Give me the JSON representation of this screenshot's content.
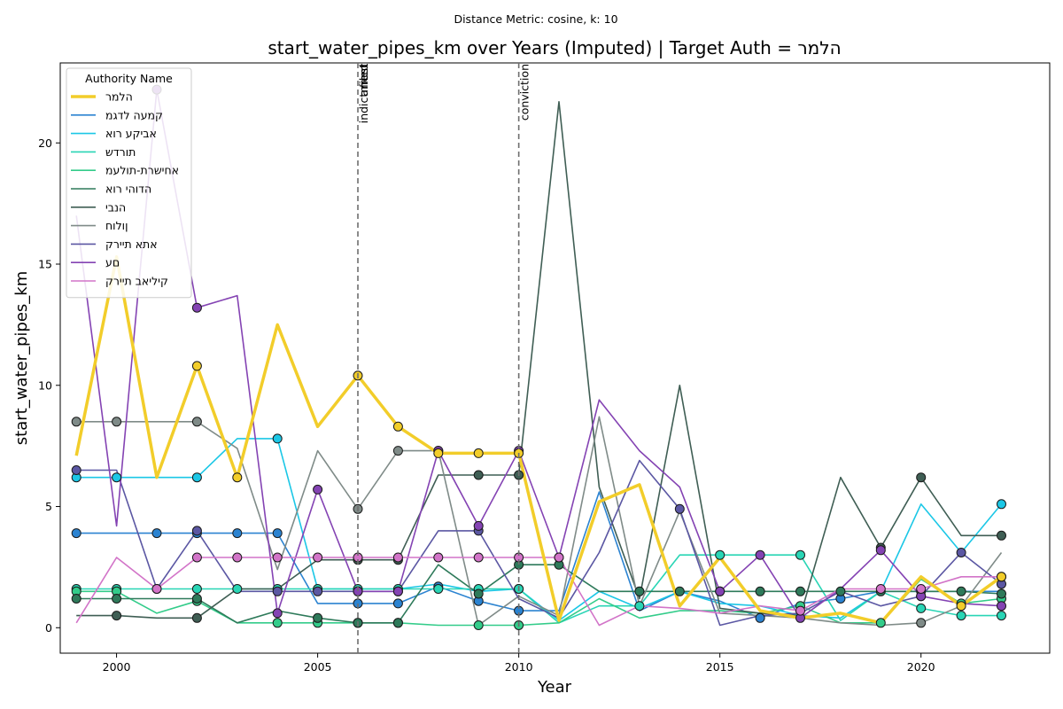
{
  "chart_data": {
    "type": "line",
    "suptitle": "Distance Metric: cosine, k: 10",
    "title": "start_water_pipes_km over Years (Imputed) | Target Auth = הלמר",
    "xlabel": "Year",
    "ylabel": "start_water_pipes_km",
    "xlim": [
      1998.6,
      2023.2
    ],
    "ylim": [
      -1.05,
      23.3
    ],
    "xticks": [
      2000,
      2005,
      2010,
      2015,
      2020
    ],
    "yticks": [
      0,
      5,
      10,
      15,
      20
    ],
    "grid": false,
    "legend": {
      "title": "Authority Name",
      "placement": "upper-left"
    },
    "events": [
      {
        "year": 2006,
        "labels": [
          "indictment",
          "arrest",
          "filed"
        ]
      },
      {
        "year": 2010,
        "labels": [
          "conviction"
        ]
      }
    ],
    "x": [
      1999,
      2000,
      2001,
      2002,
      2003,
      2004,
      2005,
      2006,
      2007,
      2008,
      2009,
      2010,
      2011,
      2012,
      2013,
      2014,
      2015,
      2016,
      2017,
      2018,
      2019,
      2020,
      2021,
      2022
    ],
    "series": [
      {
        "name": "הלמר",
        "color": "#f2cd2a",
        "target": true,
        "values": [
          7.1,
          15.3,
          6.2,
          10.8,
          6.2,
          12.5,
          8.3,
          10.4,
          8.3,
          7.2,
          7.2,
          7.2,
          0.3,
          5.2,
          5.9,
          0.9,
          2.9,
          0.7,
          0.4,
          0.6,
          0.2,
          2.1,
          0.9,
          2.1
        ],
        "markers": [
          0,
          0,
          0,
          1,
          1,
          0,
          0,
          1,
          1,
          1,
          1,
          1,
          0,
          0,
          0,
          0,
          0,
          0,
          0,
          0,
          0,
          0,
          1,
          1
        ]
      },
      {
        "name": "קמעה לדגמ",
        "color": "#2b83d1",
        "values": [
          3.9,
          3.9,
          3.9,
          3.9,
          3.9,
          3.9,
          1.0,
          1.0,
          1.0,
          1.7,
          1.1,
          0.7,
          0.7,
          5.6,
          0.7,
          1.5,
          1.1,
          0.4,
          1.0,
          1.2,
          1.5,
          1.5,
          1.5,
          1.5
        ],
        "markers": [
          1,
          0,
          1,
          1,
          1,
          1,
          0,
          1,
          1,
          1,
          1,
          1,
          0,
          0,
          0,
          0,
          0,
          1,
          0,
          1,
          0,
          0,
          0,
          0
        ]
      },
      {
        "name": "אביקע רוא",
        "color": "#1bc7e6",
        "values": [
          6.2,
          6.2,
          6.2,
          6.2,
          7.8,
          7.8,
          1.6,
          1.6,
          1.6,
          1.8,
          1.5,
          1.6,
          0.3,
          1.5,
          0.8,
          1.5,
          1.0,
          0.9,
          0.5,
          0.4,
          1.5,
          5.1,
          3.1,
          5.1
        ],
        "markers": [
          1,
          1,
          0,
          1,
          0,
          1,
          0,
          0,
          0,
          0,
          0,
          1,
          0,
          0,
          0,
          0,
          0,
          0,
          0,
          0,
          0,
          0,
          0,
          1
        ]
      },
      {
        "name": "תורדש",
        "color": "#29d5b5",
        "values": [
          1.6,
          1.6,
          1.6,
          1.6,
          1.6,
          1.6,
          1.6,
          1.6,
          1.6,
          1.6,
          1.6,
          1.6,
          0.2,
          0.9,
          0.9,
          3.0,
          3.0,
          3.0,
          3.0,
          0.3,
          1.5,
          0.8,
          0.5,
          0.5
        ],
        "markers": [
          1,
          1,
          1,
          1,
          1,
          1,
          1,
          1,
          1,
          1,
          1,
          1,
          0,
          0,
          1,
          0,
          1,
          0,
          1,
          0,
          0,
          1,
          1,
          1
        ]
      },
      {
        "name": "אחישרת-תולעמ",
        "color": "#33cc8a",
        "values": [
          1.5,
          1.5,
          0.6,
          1.1,
          0.2,
          0.2,
          0.2,
          0.2,
          0.2,
          0.1,
          0.1,
          0.1,
          0.2,
          1.2,
          0.4,
          0.7,
          0.7,
          0.6,
          0.9,
          0.2,
          0.2,
          2.0,
          1.0,
          1.2
        ],
        "markers": [
          1,
          1,
          0,
          1,
          0,
          1,
          1,
          1,
          1,
          0,
          1,
          1,
          0,
          0,
          0,
          0,
          0,
          0,
          1,
          0,
          1,
          0,
          1,
          1
        ]
      },
      {
        "name": "הדוהי רוא",
        "color": "#2e7a5a",
        "values": [
          1.2,
          1.2,
          1.2,
          1.2,
          0.2,
          0.7,
          0.4,
          0.2,
          0.2,
          2.6,
          1.4,
          2.6,
          2.6,
          1.5,
          1.5,
          1.5,
          1.5,
          1.5,
          1.5,
          1.5,
          1.5,
          1.5,
          1.5,
          1.4
        ],
        "markers": [
          1,
          1,
          0,
          1,
          0,
          0,
          1,
          1,
          1,
          0,
          1,
          1,
          1,
          0,
          1,
          1,
          1,
          1,
          1,
          1,
          1,
          1,
          1,
          1
        ]
      },
      {
        "name": "הנבי",
        "color": "#3f5e54",
        "values": [
          0.5,
          0.5,
          0.4,
          0.4,
          1.6,
          1.6,
          2.8,
          2.8,
          2.8,
          6.3,
          6.3,
          6.3,
          21.7,
          5.8,
          1.2,
          10.0,
          0.8,
          0.6,
          0.5,
          6.2,
          3.3,
          6.2,
          3.8,
          3.8
        ],
        "markers": [
          0,
          1,
          0,
          1,
          0,
          0,
          0,
          1,
          1,
          0,
          1,
          1,
          0,
          0,
          0,
          0,
          0,
          0,
          0,
          0,
          1,
          1,
          0,
          1
        ]
      },
      {
        "name": "ןולוח",
        "color": "#7f8b88",
        "values": [
          8.5,
          8.5,
          8.5,
          8.5,
          7.4,
          2.4,
          7.3,
          4.9,
          7.3,
          7.3,
          0.1,
          1.3,
          0.5,
          8.7,
          0.9,
          4.8,
          0.6,
          0.5,
          0.4,
          0.2,
          0.1,
          0.2,
          0.9,
          3.1
        ],
        "markers": [
          1,
          1,
          0,
          1,
          0,
          0,
          0,
          1,
          1,
          1,
          0,
          0,
          0,
          0,
          0,
          0,
          0,
          0,
          0,
          0,
          0,
          1,
          0,
          0
        ]
      },
      {
        "name": "אתא תיירק",
        "color": "#5b57a3",
        "values": [
          6.5,
          6.5,
          1.6,
          4.0,
          1.5,
          1.5,
          1.5,
          1.5,
          1.5,
          4.0,
          4.0,
          1.2,
          0.4,
          3.1,
          6.9,
          4.9,
          0.1,
          0.5,
          0.6,
          1.5,
          0.9,
          1.3,
          3.1,
          1.8
        ],
        "markers": [
          1,
          0,
          0,
          1,
          0,
          1,
          1,
          1,
          1,
          0,
          1,
          0,
          0,
          0,
          0,
          1,
          0,
          0,
          0,
          0,
          0,
          1,
          1,
          1
        ]
      },
      {
        "name": "םע",
        "color": "#8443b3",
        "values": [
          17.0,
          4.2,
          22.2,
          13.2,
          13.7,
          0.6,
          5.7,
          1.5,
          1.5,
          7.3,
          4.2,
          7.3,
          2.9,
          9.4,
          7.3,
          5.8,
          1.5,
          3.0,
          0.4,
          1.6,
          3.2,
          1.3,
          1.0,
          0.9
        ],
        "markers": [
          0,
          0,
          1,
          1,
          0,
          1,
          1,
          1,
          1,
          1,
          1,
          1,
          1,
          0,
          0,
          0,
          1,
          1,
          1,
          0,
          1,
          1,
          0,
          1
        ]
      },
      {
        "name": "קיליאב תיירק",
        "color": "#d274c8",
        "values": [
          0.2,
          2.9,
          1.6,
          2.9,
          2.9,
          2.9,
          2.9,
          2.9,
          2.9,
          2.9,
          2.9,
          2.9,
          2.9,
          0.1,
          0.9,
          0.8,
          0.6,
          0.9,
          0.7,
          1.6,
          1.6,
          1.6,
          2.1,
          2.1
        ],
        "markers": [
          0,
          0,
          1,
          1,
          1,
          1,
          1,
          1,
          1,
          1,
          1,
          1,
          1,
          0,
          0,
          0,
          0,
          0,
          1,
          0,
          1,
          1,
          0,
          1
        ]
      }
    ]
  }
}
